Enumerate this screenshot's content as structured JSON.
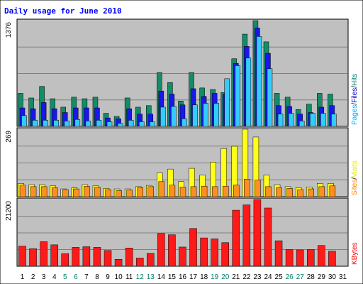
{
  "chart_data": {
    "type": "bar",
    "title": "Daily usage for June 2010",
    "categories": [
      "1",
      "2",
      "3",
      "4",
      "5",
      "6",
      "7",
      "8",
      "9",
      "10",
      "11",
      "12",
      "13",
      "14",
      "15",
      "16",
      "17",
      "18",
      "19",
      "20",
      "21",
      "22",
      "23",
      "24",
      "25",
      "26",
      "27",
      "28",
      "29",
      "30",
      "31"
    ],
    "weekend_days": [
      "5",
      "6",
      "12",
      "13",
      "19",
      "20",
      "26",
      "27"
    ],
    "panels": [
      {
        "id": "top",
        "max_label": "1376",
        "ylim": [
          0,
          1376
        ],
        "legend": [
          {
            "text": "Pages",
            "color": "#00AAFF"
          },
          {
            "text": "/",
            "color": "#000000"
          },
          {
            "text": "Files",
            "color": "#0000CC"
          },
          {
            "text": "/",
            "color": "#000000"
          },
          {
            "text": "Hits",
            "color": "#00806B"
          }
        ],
        "series": [
          {
            "name": "Hits",
            "color": "#138C67",
            "values": [
              430,
              370,
              520,
              360,
              250,
              380,
              360,
              380,
              170,
              130,
              370,
              250,
              270,
              700,
              570,
              330,
              700,
              500,
              480,
              440,
              880,
              1200,
              1376,
              1100,
              430,
              380,
              220,
              290,
              430,
              420,
              null
            ]
          },
          {
            "name": "Files",
            "color": "#1818E8",
            "values": [
              240,
              230,
              310,
              230,
              180,
              240,
              240,
              240,
              110,
              100,
              230,
              160,
              160,
              460,
              420,
              280,
              490,
              390,
              430,
              420,
              820,
              1040,
              1280,
              950,
              270,
              260,
              160,
              180,
              250,
              270,
              null
            ]
          },
          {
            "name": "Pages",
            "color": "#33CCFF",
            "values": [
              140,
              80,
              80,
              80,
              70,
              90,
              70,
              80,
              60,
              40,
              80,
              60,
              60,
              250,
              260,
              100,
              280,
              300,
              300,
              620,
              790,
              890,
              1170,
              750,
              160,
              170,
              70,
              170,
              170,
              160,
              null
            ]
          }
        ]
      },
      {
        "id": "middle",
        "max_label": "269",
        "ylim": [
          0,
          269
        ],
        "legend": [
          {
            "text": "Sites",
            "color": "#FF8000"
          },
          {
            "text": "/",
            "color": "#000000"
          },
          {
            "text": "Visits",
            "color": "#E6E600"
          }
        ],
        "series": [
          {
            "name": "Visits",
            "color": "#FFFF1A",
            "values": [
              53,
              48,
              48,
              43,
              31,
              35,
              48,
              43,
              33,
              31,
              31,
              40,
              45,
              95,
              110,
              60,
              113,
              86,
              138,
              192,
              201,
              269,
              238,
              86,
              48,
              40,
              36,
              38,
              53,
              53,
              null
            ]
          },
          {
            "name": "Sites",
            "color": "#FF9020",
            "values": [
              46,
              40,
              40,
              36,
              28,
              31,
              41,
              37,
              28,
              24,
              26,
              36,
              40,
              60,
              46,
              38,
              40,
              42,
              40,
              42,
              46,
              70,
              66,
              40,
              36,
              33,
              28,
              31,
              40,
              43,
              null
            ]
          }
        ]
      },
      {
        "id": "bottom",
        "max_label": "21200",
        "ylim": [
          0,
          21200
        ],
        "legend": [
          {
            "text": "KBytes",
            "color": "#FF0000"
          }
        ],
        "series": [
          {
            "name": "KBytes",
            "color": "#FF1A1A",
            "values": [
              6400,
              5600,
              7800,
              6800,
              4000,
              6000,
              6200,
              6000,
              5000,
              2200,
              5800,
              2600,
              4100,
              10400,
              10000,
              6100,
              12000,
              9000,
              8700,
              7500,
              17800,
              19500,
              21200,
              18500,
              8100,
              5300,
              5200,
              5300,
              6600,
              4800,
              null
            ]
          }
        ]
      }
    ]
  },
  "colors": {
    "plot_bg": "#C0C0C0",
    "frame_bg": "#FFFFFF",
    "weekday_label": "#000000",
    "weekend_label": "#00806B",
    "title": "#0000FF",
    "gridline": "#808080"
  }
}
